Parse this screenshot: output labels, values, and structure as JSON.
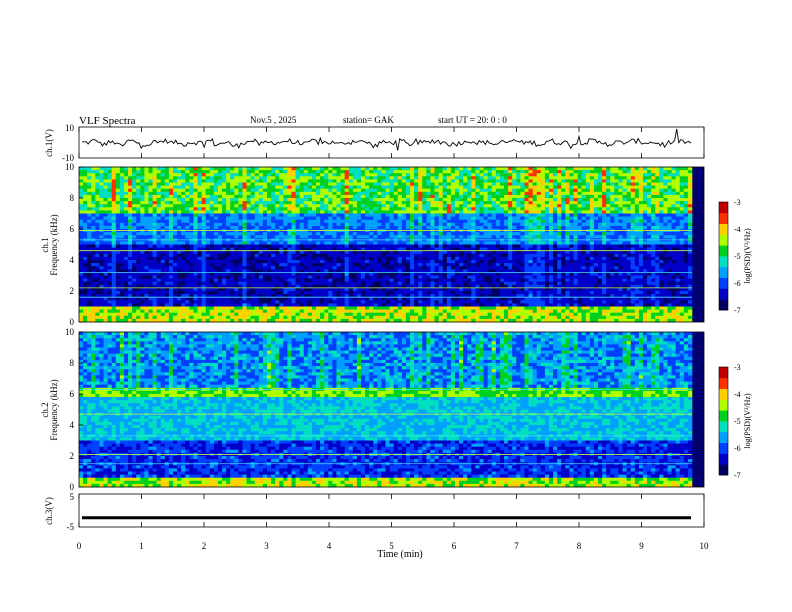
{
  "header": {
    "title": "VLF  Spectra",
    "date": "Nov.5  , 2025",
    "station": "station= GAK",
    "start": "start  UT  =    20: 0   : 0"
  },
  "colors": {
    "colormap": [
      "#000060",
      "#0000c8",
      "#0040ff",
      "#00a0ff",
      "#00e0c0",
      "#00d020",
      "#b0ff00",
      "#ffd000",
      "#ff3000",
      "#c00000",
      "#ffffff"
    ],
    "trace": "#000000"
  },
  "chart_data": [
    {
      "type": "line",
      "panel": "ch1",
      "ylabel": "ch.1(V)",
      "ylim": [
        -10,
        10
      ],
      "yticks": [
        "10",
        "-10"
      ],
      "series": [
        {
          "values": [
            2,
            3,
            1,
            2,
            0,
            3,
            2,
            1,
            2,
            3,
            2,
            1,
            2,
            2,
            3,
            1,
            2,
            0,
            2,
            3,
            1,
            2,
            2,
            3,
            2,
            1,
            3,
            2,
            2,
            1,
            2,
            3,
            2,
            0,
            2,
            2,
            3,
            1,
            2,
            2,
            3,
            2,
            1,
            2,
            3,
            2,
            2,
            1,
            2,
            3,
            2,
            2,
            1,
            3,
            2,
            2,
            1,
            2,
            3,
            2,
            1,
            2,
            2,
            3,
            2,
            2,
            1,
            2,
            3,
            2
          ]
        }
      ]
    },
    {
      "type": "heatmap",
      "panel": "ch1-spectrogram",
      "ylabel": "ch.1\nFrequency  (kHz)",
      "ylim": [
        0,
        10
      ],
      "yticks": [
        "0",
        "2",
        "4",
        "6",
        "8",
        "10"
      ],
      "colorbar": {
        "label": "log(PSD)(V²/Hz)",
        "range": [
          -7,
          -3
        ],
        "ticks": [
          "-3",
          "-4",
          "-5",
          "-6",
          "-7"
        ]
      }
    },
    {
      "type": "heatmap",
      "panel": "ch2-spectrogram",
      "ylabel": "ch.2\nFrequency  (kHz)",
      "ylim": [
        0,
        10
      ],
      "yticks": [
        "0",
        "2",
        "4",
        "6",
        "8",
        "10"
      ],
      "colorbar": {
        "label": "log(PSD)(V²/Hz)",
        "range": [
          -7,
          -3
        ],
        "ticks": [
          "-3",
          "-4",
          "-5",
          "-6",
          "-7"
        ]
      }
    },
    {
      "type": "line",
      "panel": "ch3",
      "ylabel": "ch.3(V)",
      "ylim": [
        -5,
        5
      ],
      "yticks": [
        "5",
        "-5"
      ],
      "series": [
        {
          "values": [
            -2.2,
            -2.2,
            -2.2,
            -2.2,
            -2.2,
            -2.2,
            -2.2,
            -2.2,
            -2.2,
            -2.2
          ]
        }
      ]
    }
  ],
  "xaxis": {
    "label": "Time  (min)",
    "range": [
      0,
      10
    ],
    "ticks": [
      "0",
      "1",
      "2",
      "3",
      "4",
      "5",
      "6",
      "7",
      "8",
      "9",
      "10"
    ]
  }
}
